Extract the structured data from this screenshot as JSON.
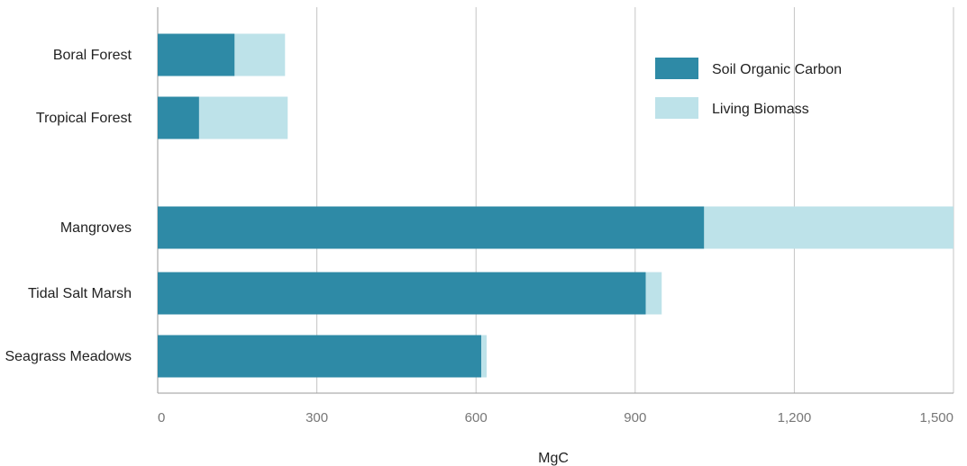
{
  "chart_data": {
    "type": "bar",
    "orientation": "horizontal",
    "stacked": true,
    "categories": [
      "Boral Forest",
      "Tropical Forest",
      "Mangroves",
      "Tidal Salt Marsh",
      "Seagrass Meadows"
    ],
    "category_groups": [
      [
        "Boral Forest",
        "Tropical Forest"
      ],
      [
        "Mangroves",
        "Tidal Salt Marsh",
        "Seagrass Meadows"
      ]
    ],
    "series": [
      {
        "name": "Soil Organic Carbon",
        "color": "#2e8aa6",
        "values": [
          145,
          78,
          1030,
          920,
          610
        ]
      },
      {
        "name": "Living Biomass",
        "color": "#bde2e9",
        "values": [
          95,
          167,
          470,
          30,
          10
        ]
      }
    ],
    "xlabel": "MgC",
    "ylabel": "",
    "xlim": [
      0,
      1500
    ],
    "xticks": [
      0,
      300,
      600,
      900,
      1200,
      1500
    ],
    "xtick_labels": [
      "0",
      "300",
      "600",
      "900",
      "1,200",
      "1,500"
    ],
    "grid": "vertical",
    "legend_position": "top-right"
  }
}
